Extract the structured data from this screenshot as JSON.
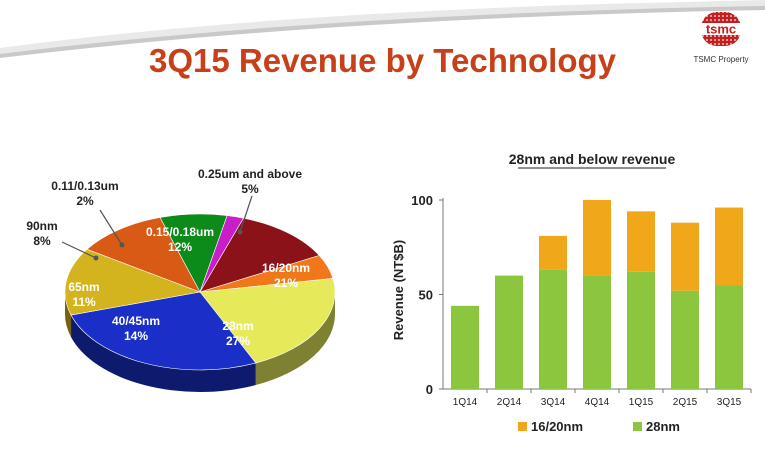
{
  "header": {
    "title": "3Q15 Revenue by Technology",
    "logo_text": "tsmc",
    "property_label": "TSMC Property"
  },
  "colors": {
    "title": "#c8401a",
    "bar_16_20nm": "#f0a81a",
    "bar_28nm": "#8cc63e",
    "logo": "#c41e1e"
  },
  "chart_data": [
    {
      "type": "pie",
      "title": "",
      "slices": [
        {
          "label": "0.25um and above",
          "value": 5,
          "value_label": "5%",
          "color": "#f0781a"
        },
        {
          "label": "16/20nm",
          "value": 21,
          "value_label": "21%",
          "color": "#e6ea5a"
        },
        {
          "label": "28nm",
          "value": 27,
          "value_label": "27%",
          "color": "#1a2fc8"
        },
        {
          "label": "40/45nm",
          "value": 14,
          "value_label": "14%",
          "color": "#d4b41e"
        },
        {
          "label": "65nm",
          "value": 11,
          "value_label": "11%",
          "color": "#d85a14"
        },
        {
          "label": "90nm",
          "value": 8,
          "value_label": "8%",
          "color": "#0c8a1a"
        },
        {
          "label": "0.11/0.13um",
          "value": 2,
          "value_label": "2%",
          "color": "#c81ec8"
        },
        {
          "label": "0.15/0.18um",
          "value": 12,
          "value_label": "12%",
          "color": "#8a1218"
        }
      ]
    },
    {
      "type": "bar",
      "stacked": true,
      "title": "28nm and below revenue",
      "ylabel": "Revenue (NT$B)",
      "xlabel": "",
      "ylim": [
        0,
        100
      ],
      "yticks": [
        0,
        50,
        100
      ],
      "categories": [
        "1Q14",
        "2Q14",
        "3Q14",
        "4Q14",
        "1Q15",
        "2Q15",
        "3Q15"
      ],
      "series": [
        {
          "name": "28nm",
          "color": "#8cc63e",
          "values": [
            44,
            60,
            63,
            60,
            62,
            52,
            55
          ]
        },
        {
          "name": "16/20nm",
          "color": "#f0a81a",
          "values": [
            0,
            0,
            18,
            40,
            32,
            36,
            41
          ]
        }
      ],
      "legend": [
        {
          "name": "16/20nm",
          "color": "#f0a81a"
        },
        {
          "name": "28nm",
          "color": "#8cc63e"
        }
      ],
      "legend_position": "bottom"
    }
  ]
}
